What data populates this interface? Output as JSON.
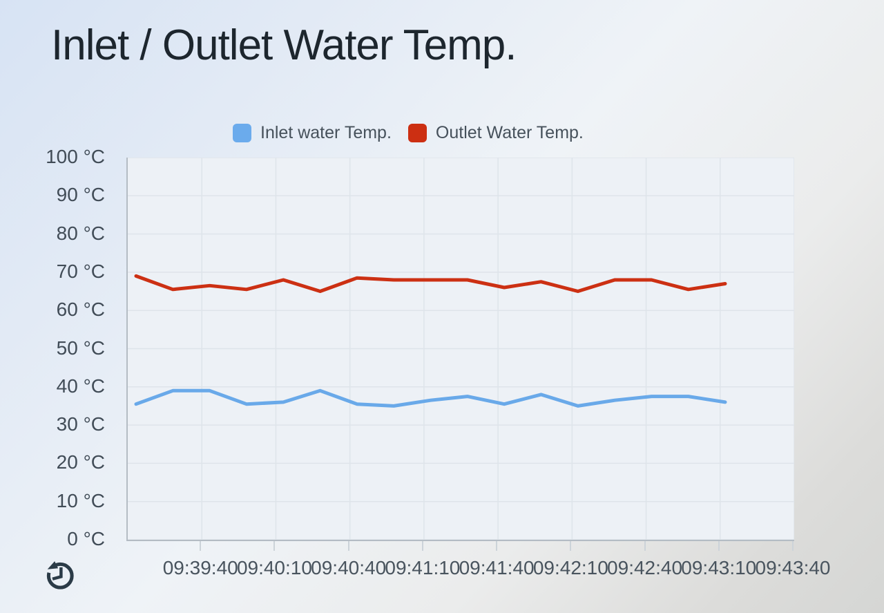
{
  "page": {
    "title": "Inlet / Outlet Water Temp."
  },
  "legend": [
    {
      "label": "Inlet water Temp.",
      "color": "#6babec"
    },
    {
      "label": "Outlet Water Temp.",
      "color": "#cc2f12"
    }
  ],
  "controls": {
    "history_button_icon": "history-icon"
  },
  "colors": {
    "inlet_line": "#69a9e9",
    "outlet_line": "#cc3013",
    "grid_line": "#dee4ea",
    "axis_line": "#b4bcc4",
    "plot_background": "#edf1f6",
    "axis_text": "#46515b",
    "title_text": "#1d262e",
    "icon": "#2b3b47"
  },
  "chart_data": {
    "type": "line",
    "title": "Inlet / Outlet Water Temp.",
    "x_tick_labels": [
      "09:39:40",
      "09:40:10",
      "09:40:40",
      "09:41:10",
      "09:41:40",
      "09:42:10",
      "09:42:40",
      "09:43:10",
      "09:43:40"
    ],
    "y_tick_labels": [
      "100 °C",
      "90 °C",
      "80 °C",
      "70 °C",
      "60 °C",
      "50 °C",
      "40 °C",
      "30 °C",
      "20 °C",
      "10 °C",
      "0 °C"
    ],
    "ylim": [
      0,
      100
    ],
    "grid": true,
    "legend_position": "top",
    "series": [
      {
        "name": "Inlet water Temp.",
        "color": "#69a9e9",
        "values": [
          35.5,
          39,
          39,
          35.5,
          36,
          39,
          35.5,
          35,
          36.5,
          37.5,
          35.5,
          38,
          35,
          36.5,
          37.5,
          37.5,
          36
        ]
      },
      {
        "name": "Outlet Water Temp.",
        "color": "#cc3013",
        "values": [
          69,
          65.5,
          66.5,
          65.5,
          68,
          65,
          68.5,
          68,
          68,
          68,
          66,
          67.5,
          65,
          68,
          68,
          65.5,
          67
        ]
      }
    ]
  }
}
